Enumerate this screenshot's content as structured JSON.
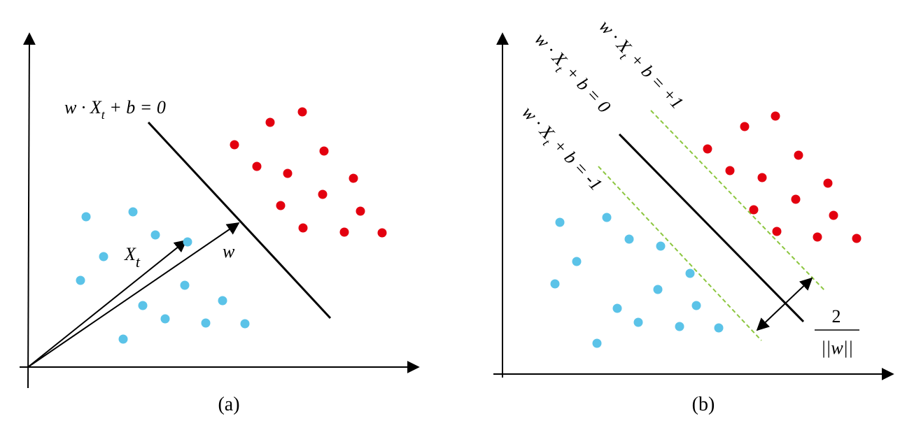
{
  "panel_a": {
    "hyperplane_label": {
      "before": "w · X",
      "sub": "t",
      "after": " + b = 0"
    },
    "vector_xt": {
      "main": "X",
      "sub": "t"
    },
    "vector_w": "w",
    "caption": "(a)"
  },
  "panel_b": {
    "upper_label": {
      "before": "w · X",
      "sub": "t",
      "after": " + b = +1"
    },
    "middle_label": {
      "before": "w · X",
      "sub": "t",
      "after": " + b = 0"
    },
    "lower_label": {
      "before": "w · X",
      "sub": "t",
      "after": " + b = -1"
    },
    "margin_numerator": "2",
    "margin_denominator": "||w||",
    "caption": "(b)"
  }
}
